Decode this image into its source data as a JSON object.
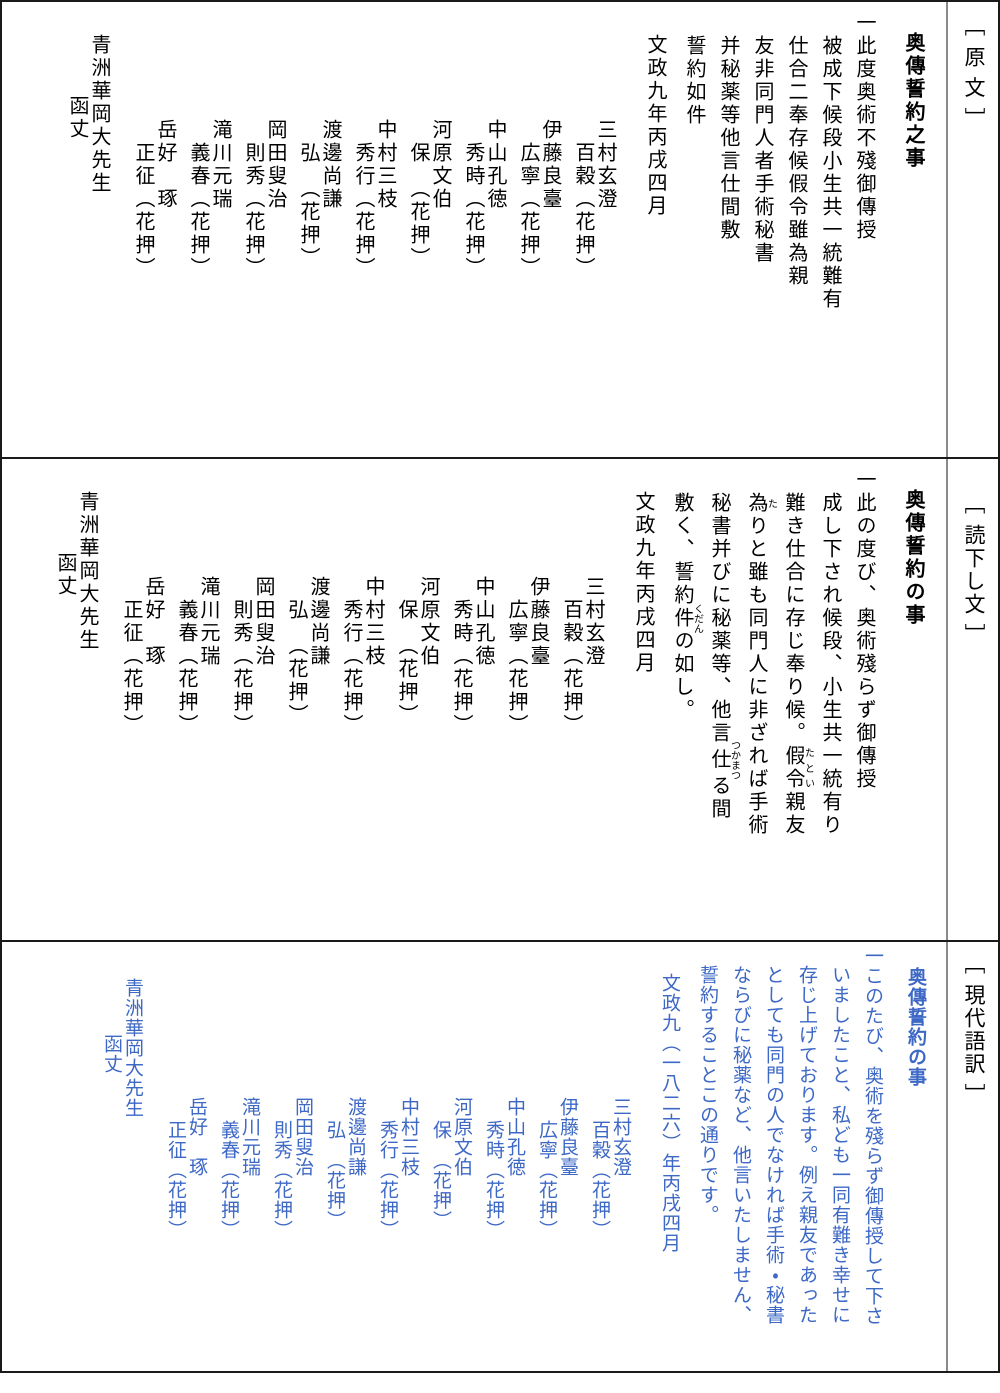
{
  "colors": {
    "ink": "#000000",
    "translation_blue": "#3d68c5",
    "panel_border": "#1a1a1a",
    "label_divider": "#8a8a8a"
  },
  "signers": [
    {
      "name": "三村玄澄",
      "seal": "百穀（花押）"
    },
    {
      "name": "伊藤良臺",
      "seal": "広寧（花押）"
    },
    {
      "name": "中山孔徳",
      "seal": "秀時（花押）"
    },
    {
      "name": "河原文伯",
      "seal": "保　（花押）"
    },
    {
      "name": "中村三枝",
      "seal": "秀行（花押）"
    },
    {
      "name": "渡邊尚謙",
      "seal": "弘　（花押）"
    },
    {
      "name": "岡田叟治",
      "seal": "則秀（花押）"
    },
    {
      "name": "滝川元瑞",
      "seal": "義春（花押）"
    },
    {
      "name": "岳好　琢",
      "seal": "正征（花押）"
    }
  ],
  "addressee": {
    "line1": "青洲華岡大先生",
    "line2": "函丈"
  },
  "panels": [
    {
      "label": "［ 原 文 ］",
      "title": "奥傳誓約之事",
      "lines": [
        "一此度奥術不殘御傳授",
        "被成下候段小生共一統難有",
        "仕合二奉存候假令雖為親",
        "友非同門人者手術秘書",
        "并秘薬等他言仕間敷",
        "誓約如件"
      ],
      "date": "文政九年丙戌四月"
    },
    {
      "label": "［ 読下し文 ］",
      "title": "奥傳誓約の事",
      "lines": [
        {
          "pre": "一此の度び、奥術殘らず御傳授",
          "rb": "",
          "rt": "",
          "post": ""
        },
        {
          "pre": "成し下され候段、小生共一統有り",
          "rb": "",
          "rt": "",
          "post": ""
        },
        {
          "pre": "難き仕合に存じ奉り候。",
          "rb": "假令",
          "rt": "たとい",
          "post": "親友"
        },
        {
          "pre": "",
          "rb": "為",
          "rt": "た",
          "post": "りと雖も同門人に非ざれば手術"
        },
        {
          "pre": "秘書并びに秘薬等、他言",
          "rb": "仕",
          "rt": "つかまつ",
          "post": "る間"
        },
        {
          "pre": "敷く、誓約",
          "rb": "件",
          "rt": "くだん",
          "post": "の如し。"
        }
      ],
      "date": "文政九年丙戌四月"
    },
    {
      "label": "［ 現代語訳 ］",
      "title": "奥傳誓約の事",
      "lines": [
        "一このたび、奥術を殘らず御傳授して下さ",
        "いましたこと、私ども一同有難き幸せに",
        "存じ上げております。例え親友であった",
        "としても同門の人でなければ手術・秘書",
        "ならびに秘薬など、他言いたしません、",
        "誓約することこの通りです。"
      ],
      "date": "文政九（一八二六）年丙戌四月"
    }
  ]
}
